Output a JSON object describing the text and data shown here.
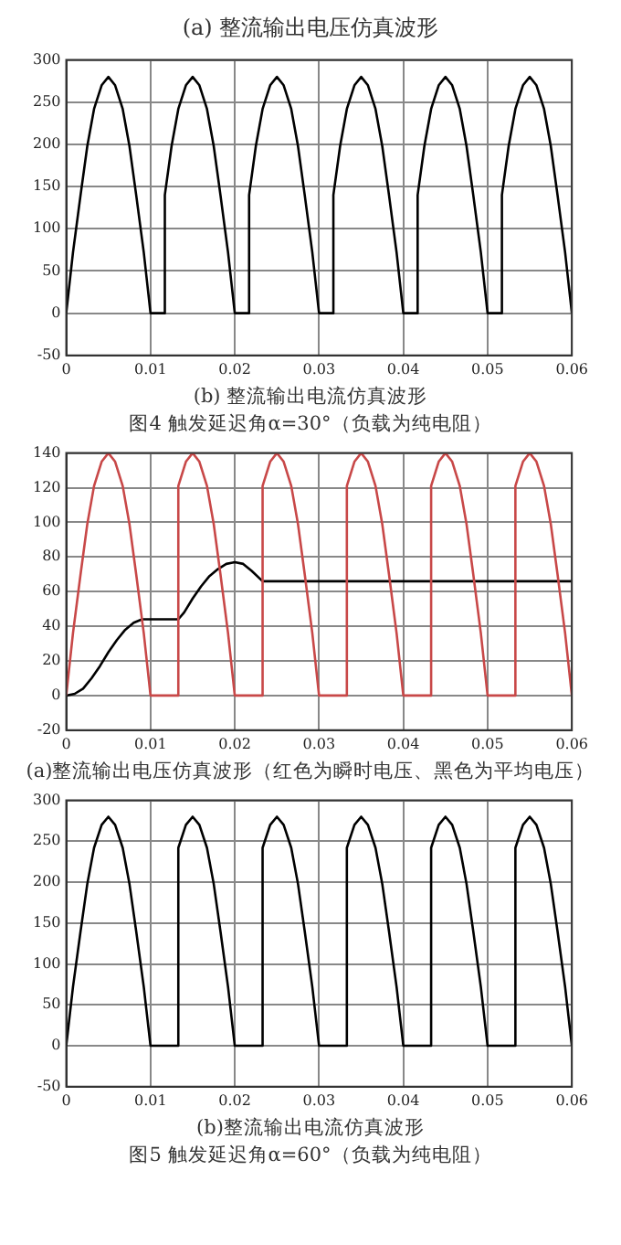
{
  "chart_data": [
    {
      "type": "line",
      "title": "(a) 整流输出电压仿真波形",
      "annotations": [
        "(b) 整流输出电流仿真波形",
        "图4 触发延迟角α=30°（负载为纯电阻）"
      ],
      "xlim": [
        0,
        0.06
      ],
      "xticks": [
        0,
        0.01,
        0.02,
        0.03,
        0.04,
        0.05,
        0.06
      ],
      "ylim": [
        -50,
        300
      ],
      "yticks": [
        -50,
        0,
        50,
        100,
        150,
        200,
        250,
        300
      ],
      "grid": true,
      "marker": "none",
      "series": [
        {
          "color": "#000000",
          "x": [
            0,
            0.0008,
            0.0017,
            0.0025,
            0.0033,
            0.0042,
            0.005,
            0.0058,
            0.0067,
            0.0075,
            0.0083,
            0.0092,
            0.01,
            0.0117,
            0.0117,
            0.0125,
            0.0133,
            0.0142,
            0.015,
            0.0158,
            0.0167,
            0.0175,
            0.0183,
            0.0192,
            0.02,
            0.0217,
            0.0217,
            0.0225,
            0.0233,
            0.0242,
            0.025,
            0.0258,
            0.0267,
            0.0275,
            0.0283,
            0.0292,
            0.03,
            0.0317,
            0.0317,
            0.0325,
            0.0333,
            0.0342,
            0.035,
            0.0358,
            0.0367,
            0.0375,
            0.0383,
            0.0392,
            0.04,
            0.0417,
            0.0417,
            0.0425,
            0.0433,
            0.0442,
            0.045,
            0.0458,
            0.0467,
            0.0475,
            0.0483,
            0.0492,
            0.05,
            0.0517,
            0.0517,
            0.0525,
            0.0533,
            0.0542,
            0.055,
            0.0558,
            0.0567,
            0.0575,
            0.0583,
            0.0592,
            0.06
          ],
          "values": [
            0,
            72,
            140,
            198,
            242,
            270,
            280,
            270,
            242,
            198,
            140,
            72,
            0,
            0,
            140,
            198,
            242,
            270,
            280,
            270,
            242,
            198,
            140,
            72,
            0,
            0,
            140,
            198,
            242,
            270,
            280,
            270,
            242,
            198,
            140,
            72,
            0,
            0,
            140,
            198,
            242,
            270,
            280,
            270,
            242,
            198,
            140,
            72,
            0,
            0,
            140,
            198,
            242,
            270,
            280,
            270,
            242,
            198,
            140,
            72,
            0,
            0,
            140,
            198,
            242,
            270,
            280,
            270,
            242,
            198,
            140,
            72,
            0
          ]
        }
      ]
    },
    {
      "type": "line",
      "annotations": [
        "(a)整流输出电压仿真波形（红色为瞬时电压、黑色为平均电压）"
      ],
      "xlim": [
        0,
        0.06
      ],
      "xticks": [
        0,
        0.01,
        0.02,
        0.03,
        0.04,
        0.05,
        0.06
      ],
      "ylim": [
        -20,
        140
      ],
      "yticks": [
        -20,
        0,
        20,
        40,
        60,
        80,
        100,
        120,
        140
      ],
      "grid": true,
      "marker": "none",
      "series": [
        {
          "color": "#c84848",
          "x": [
            0,
            0.0008,
            0.0017,
            0.0025,
            0.0033,
            0.0042,
            0.005,
            0.0058,
            0.0067,
            0.0075,
            0.0083,
            0.0092,
            0.01,
            0.0133,
            0.0133,
            0.0142,
            0.015,
            0.0158,
            0.0167,
            0.0175,
            0.0183,
            0.0192,
            0.02,
            0.0233,
            0.0233,
            0.0242,
            0.025,
            0.0258,
            0.0267,
            0.0275,
            0.0283,
            0.0292,
            0.03,
            0.0333,
            0.0333,
            0.0342,
            0.035,
            0.0358,
            0.0367,
            0.0375,
            0.0383,
            0.0392,
            0.04,
            0.0433,
            0.0433,
            0.0442,
            0.045,
            0.0458,
            0.0467,
            0.0475,
            0.0483,
            0.0492,
            0.05,
            0.0533,
            0.0533,
            0.0542,
            0.055,
            0.0558,
            0.0567,
            0.0575,
            0.0583,
            0.0592,
            0.06
          ],
          "values": [
            0,
            36,
            70,
            99,
            121,
            135,
            140,
            135,
            121,
            99,
            70,
            36,
            0,
            0,
            121,
            135,
            140,
            135,
            121,
            99,
            70,
            36,
            0,
            0,
            121,
            135,
            140,
            135,
            121,
            99,
            70,
            36,
            0,
            0,
            121,
            135,
            140,
            135,
            121,
            99,
            70,
            36,
            0,
            0,
            121,
            135,
            140,
            135,
            121,
            99,
            70,
            36,
            0,
            0,
            121,
            135,
            140,
            135,
            121,
            99,
            70,
            36,
            0
          ]
        },
        {
          "color": "#000000",
          "x": [
            0,
            0.001,
            0.002,
            0.003,
            0.004,
            0.005,
            0.006,
            0.007,
            0.008,
            0.009,
            0.0133,
            0.014,
            0.015,
            0.016,
            0.017,
            0.018,
            0.019,
            0.02,
            0.021,
            0.022,
            0.0233,
            0.06
          ],
          "values": [
            0,
            1,
            4,
            10,
            17,
            25,
            32,
            38,
            42,
            44,
            44,
            48,
            56,
            63,
            69,
            73,
            76,
            77,
            76,
            72,
            66,
            66
          ]
        }
      ]
    },
    {
      "type": "line",
      "annotations": [
        "(b)整流输出电流仿真波形",
        "图5 触发延迟角α=60°（负载为纯电阻）"
      ],
      "xlim": [
        0,
        0.06
      ],
      "xticks": [
        0,
        0.01,
        0.02,
        0.03,
        0.04,
        0.05,
        0.06
      ],
      "ylim": [
        -50,
        300
      ],
      "yticks": [
        -50,
        0,
        50,
        100,
        150,
        200,
        250,
        300
      ],
      "grid": true,
      "marker": "none",
      "series": [
        {
          "color": "#000000",
          "x": [
            0,
            0.0008,
            0.0017,
            0.0025,
            0.0033,
            0.0042,
            0.005,
            0.0058,
            0.0067,
            0.0075,
            0.0083,
            0.0092,
            0.01,
            0.0133,
            0.0133,
            0.0142,
            0.015,
            0.0158,
            0.0167,
            0.0175,
            0.0183,
            0.0192,
            0.02,
            0.0233,
            0.0233,
            0.0242,
            0.025,
            0.0258,
            0.0267,
            0.0275,
            0.0283,
            0.0292,
            0.03,
            0.0333,
            0.0333,
            0.0342,
            0.035,
            0.0358,
            0.0367,
            0.0375,
            0.0383,
            0.0392,
            0.04,
            0.0433,
            0.0433,
            0.0442,
            0.045,
            0.0458,
            0.0467,
            0.0475,
            0.0483,
            0.0492,
            0.05,
            0.0533,
            0.0533,
            0.0542,
            0.055,
            0.0558,
            0.0567,
            0.0575,
            0.0583,
            0.0592,
            0.06
          ],
          "values": [
            0,
            72,
            140,
            198,
            242,
            270,
            280,
            270,
            242,
            198,
            140,
            72,
            0,
            0,
            242,
            270,
            280,
            270,
            242,
            198,
            140,
            72,
            0,
            0,
            242,
            270,
            280,
            270,
            242,
            198,
            140,
            72,
            0,
            0,
            242,
            270,
            280,
            270,
            242,
            198,
            140,
            72,
            0,
            0,
            242,
            270,
            280,
            270,
            242,
            198,
            140,
            72,
            0,
            0,
            242,
            270,
            280,
            270,
            242,
            198,
            140,
            72,
            0
          ]
        }
      ]
    }
  ]
}
